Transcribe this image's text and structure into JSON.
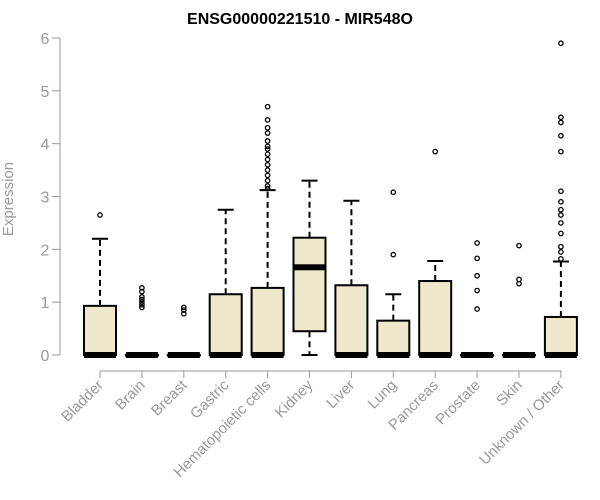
{
  "chart_data": {
    "type": "box",
    "title": "ENSG00000221510 - MIR548O",
    "xlabel": "",
    "ylabel": "Expression",
    "ylim": [
      0,
      6
    ],
    "yticks": [
      0,
      1,
      2,
      3,
      4,
      5,
      6
    ],
    "grid": false,
    "box_color": "#EEE8CD",
    "categories": [
      "Bladder",
      "Brain",
      "Breast",
      "Gastric",
      "Hematopoietic cells",
      "Kidney",
      "Liver",
      "Lung",
      "Pancreas",
      "Prostate",
      "Skin",
      "Unknown / Other"
    ],
    "boxes": [
      {
        "q1": 0,
        "median": 0,
        "q3": 0.93,
        "whisker_low": 0,
        "whisker_high": 2.2,
        "outliers": [
          2.65
        ]
      },
      {
        "q1": 0,
        "median": 0,
        "q3": 0,
        "whisker_low": 0,
        "whisker_high": 0,
        "outliers": [
          0.9,
          0.95,
          1.0,
          1.05,
          1.1,
          1.2,
          1.27
        ]
      },
      {
        "q1": 0,
        "median": 0,
        "q3": 0,
        "whisker_low": 0,
        "whisker_high": 0,
        "outliers": [
          0.78,
          0.85,
          0.9
        ]
      },
      {
        "q1": 0,
        "median": 0,
        "q3": 1.15,
        "whisker_low": 0,
        "whisker_high": 2.75,
        "outliers": []
      },
      {
        "q1": 0,
        "median": 0,
        "q3": 1.27,
        "whisker_low": 0,
        "whisker_high": 3.12,
        "outliers": [
          3.15,
          3.2,
          3.3,
          3.4,
          3.5,
          3.6,
          3.7,
          3.8,
          3.9,
          3.95,
          4.05,
          4.2,
          4.3,
          4.45,
          4.7
        ]
      },
      {
        "q1": 0.45,
        "median": 1.66,
        "q3": 2.22,
        "whisker_low": 0,
        "whisker_high": 3.3,
        "outliers": []
      },
      {
        "q1": 0,
        "median": 0,
        "q3": 1.32,
        "whisker_low": 0,
        "whisker_high": 2.92,
        "outliers": []
      },
      {
        "q1": 0,
        "median": 0,
        "q3": 0.65,
        "whisker_low": 0,
        "whisker_high": 1.15,
        "outliers": [
          1.9,
          3.08
        ]
      },
      {
        "q1": 0,
        "median": 0,
        "q3": 1.4,
        "whisker_low": 0,
        "whisker_high": 1.78,
        "outliers": [
          3.85
        ]
      },
      {
        "q1": 0,
        "median": 0,
        "q3": 0,
        "whisker_low": 0,
        "whisker_high": 0,
        "outliers": [
          0.87,
          1.22,
          1.5,
          1.83,
          2.12
        ]
      },
      {
        "q1": 0,
        "median": 0,
        "q3": 0,
        "whisker_low": 0,
        "whisker_high": 0,
        "outliers": [
          1.35,
          1.43,
          2.07
        ]
      },
      {
        "q1": 0,
        "median": 0,
        "q3": 0.72,
        "whisker_low": 0,
        "whisker_high": 1.77,
        "outliers": [
          1.82,
          1.95,
          2.05,
          2.3,
          2.5,
          2.65,
          2.75,
          2.9,
          3.1,
          3.85,
          4.15,
          4.4,
          4.5,
          5.9
        ]
      }
    ]
  }
}
